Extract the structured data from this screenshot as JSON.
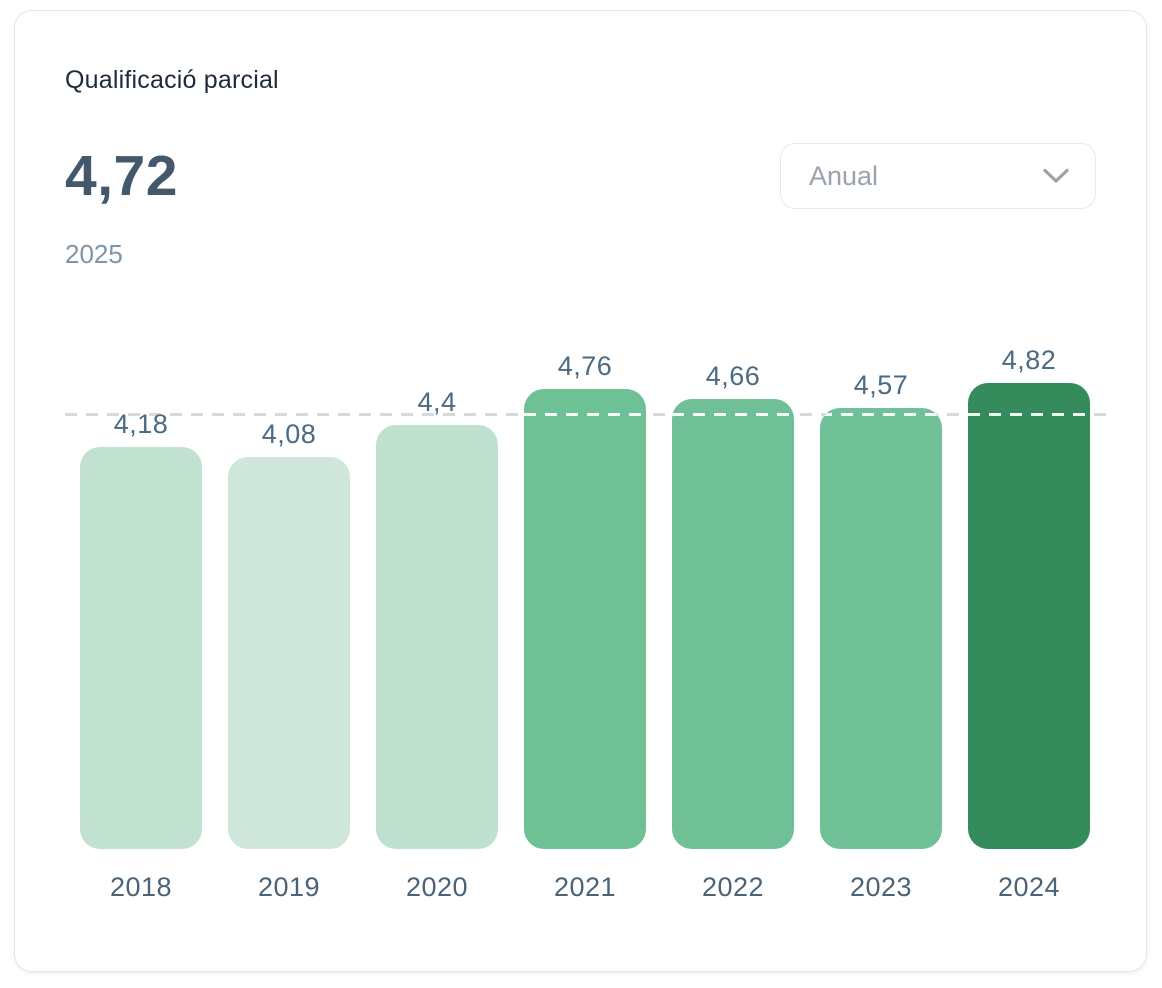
{
  "card": {
    "title": "Qualificació parcial",
    "current_value": "4,72",
    "current_period": "2025",
    "filter": {
      "selected_label": "Anual",
      "icon": "chevron-down-icon"
    }
  },
  "chart_data": {
    "type": "bar",
    "title": "Qualificació parcial",
    "xlabel": "",
    "ylabel": "",
    "categories": [
      "2018",
      "2019",
      "2020",
      "2021",
      "2022",
      "2023",
      "2024"
    ],
    "values": [
      4.18,
      4.08,
      4.4,
      4.76,
      4.66,
      4.57,
      4.82
    ],
    "value_labels": [
      "4,18",
      "4,08",
      "4,4",
      "4,76",
      "4,66",
      "4,57",
      "4,82"
    ],
    "bar_colors": [
      "#c2e2d1",
      "#cee7da",
      "#bfe1cf",
      "#6ec095",
      "#6fc096",
      "#70c197",
      "#348c5d"
    ],
    "reference_line_value": 4.5,
    "ylim": [
      0,
      5
    ],
    "grid": "single dashed horizontal reference line",
    "legend": false
  },
  "colors": {
    "card_border": "#e2e6f0",
    "title_text": "#1f2a37",
    "big_value_text": "#44586c",
    "period_text": "#7e95a7",
    "dropdown_text": "#9aa2ad",
    "bar_label_text": "#4b6a83",
    "axis_label_text": "#4a6378",
    "reference_line": "#d8dada",
    "reference_line_on_bar": "#ffffff"
  }
}
